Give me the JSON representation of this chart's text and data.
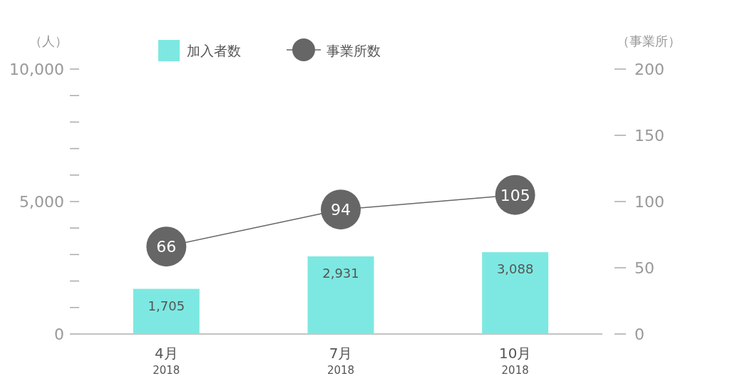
{
  "chart_data": {
    "type": "bar",
    "categories": [
      "4月\n2018",
      "7月\n2018",
      "10月\n2018"
    ],
    "ylabel": "（人）",
    "y2label": "（事業所）",
    "ylim": [
      0,
      10000
    ],
    "yticks": [
      0,
      {
        "value": 1000,
        "label": null
      },
      {
        "value": 2000,
        "label": null
      },
      {
        "value": 3000,
        "label": null
      },
      {
        "value": 4000,
        "label": null
      },
      {
        "value": 5000,
        "label": "5,000"
      },
      {
        "value": 6000,
        "label": null
      },
      {
        "value": 7000,
        "label": null
      },
      {
        "value": 8000,
        "label": null
      },
      {
        "value": 9000,
        "label": null
      },
      {
        "value": 10000,
        "label": "10,000"
      }
    ],
    "y2lim": [
      0,
      200
    ],
    "y2ticks": [
      0,
      50,
      100,
      150,
      200
    ],
    "series": [
      {
        "name": "加入者数",
        "color": "#7de8e1",
        "values": [
          1705,
          2931,
          3088
        ],
        "value_labels": [
          "1,705",
          "2,931",
          "3,088"
        ]
      },
      {
        "name": "事業所数",
        "type": "line",
        "axis": "y2",
        "color": "#666666",
        "values": [
          66,
          94,
          105
        ],
        "value_labels": [
          "66",
          "94",
          "105"
        ]
      }
    ],
    "legend": "top"
  }
}
